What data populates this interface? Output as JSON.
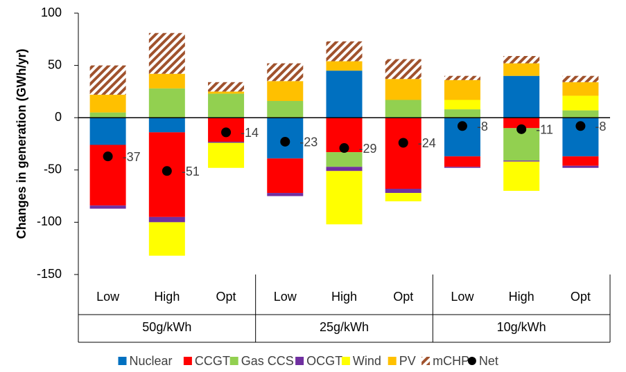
{
  "chart_data": {
    "type": "stacked-bar",
    "y_label": "Changes in generation (GWh/yr)",
    "categories": [
      "Low",
      "High",
      "Opt",
      "Low",
      "High",
      "Opt",
      "Low",
      "High",
      "Opt"
    ],
    "groups": [
      "50g/kWh",
      "25g/kWh",
      "10g/kWh"
    ],
    "series": [
      {
        "name": "Nuclear",
        "color": "#0070C0",
        "values": [
          -26,
          -14,
          0,
          -39,
          45,
          0,
          -37,
          40,
          -37
        ]
      },
      {
        "name": "CCGT",
        "color": "#FF0000",
        "values": [
          -58,
          -81,
          -23,
          -33,
          -33,
          -68,
          -10,
          -10,
          -9
        ]
      },
      {
        "name": "Gas CCS",
        "color": "#92D050",
        "values": [
          5,
          28,
          23,
          16,
          -14,
          17,
          8,
          -31,
          7
        ]
      },
      {
        "name": "OCGT",
        "color": "#7030A0",
        "values": [
          -3,
          -5,
          -1,
          -3,
          -4,
          -4,
          -1,
          -1,
          -2
        ]
      },
      {
        "name": "Wind",
        "color": "#FFFF00",
        "values": [
          0,
          -32,
          -24,
          0,
          -51,
          -8,
          9,
          -28,
          14
        ]
      },
      {
        "name": "PV",
        "color": "#FFC000",
        "values": [
          17,
          14,
          2,
          19,
          9,
          20,
          19,
          12,
          13
        ]
      },
      {
        "name": "mCHP",
        "color": "#A0522D",
        "pattern": "diagonal-stripes",
        "values": [
          28,
          39,
          9,
          17,
          19,
          19,
          4,
          7,
          6
        ]
      }
    ],
    "net": {
      "name": "Net",
      "type": "scatter",
      "color": "#000000",
      "values": [
        -37,
        -51,
        -14,
        -23,
        -29,
        -24,
        -8,
        -11,
        -8
      ]
    },
    "ylim": [
      -150,
      100
    ],
    "yticks": [
      -150,
      -100,
      -50,
      0,
      50,
      100
    ],
    "grid": false,
    "legend": "bottom"
  }
}
